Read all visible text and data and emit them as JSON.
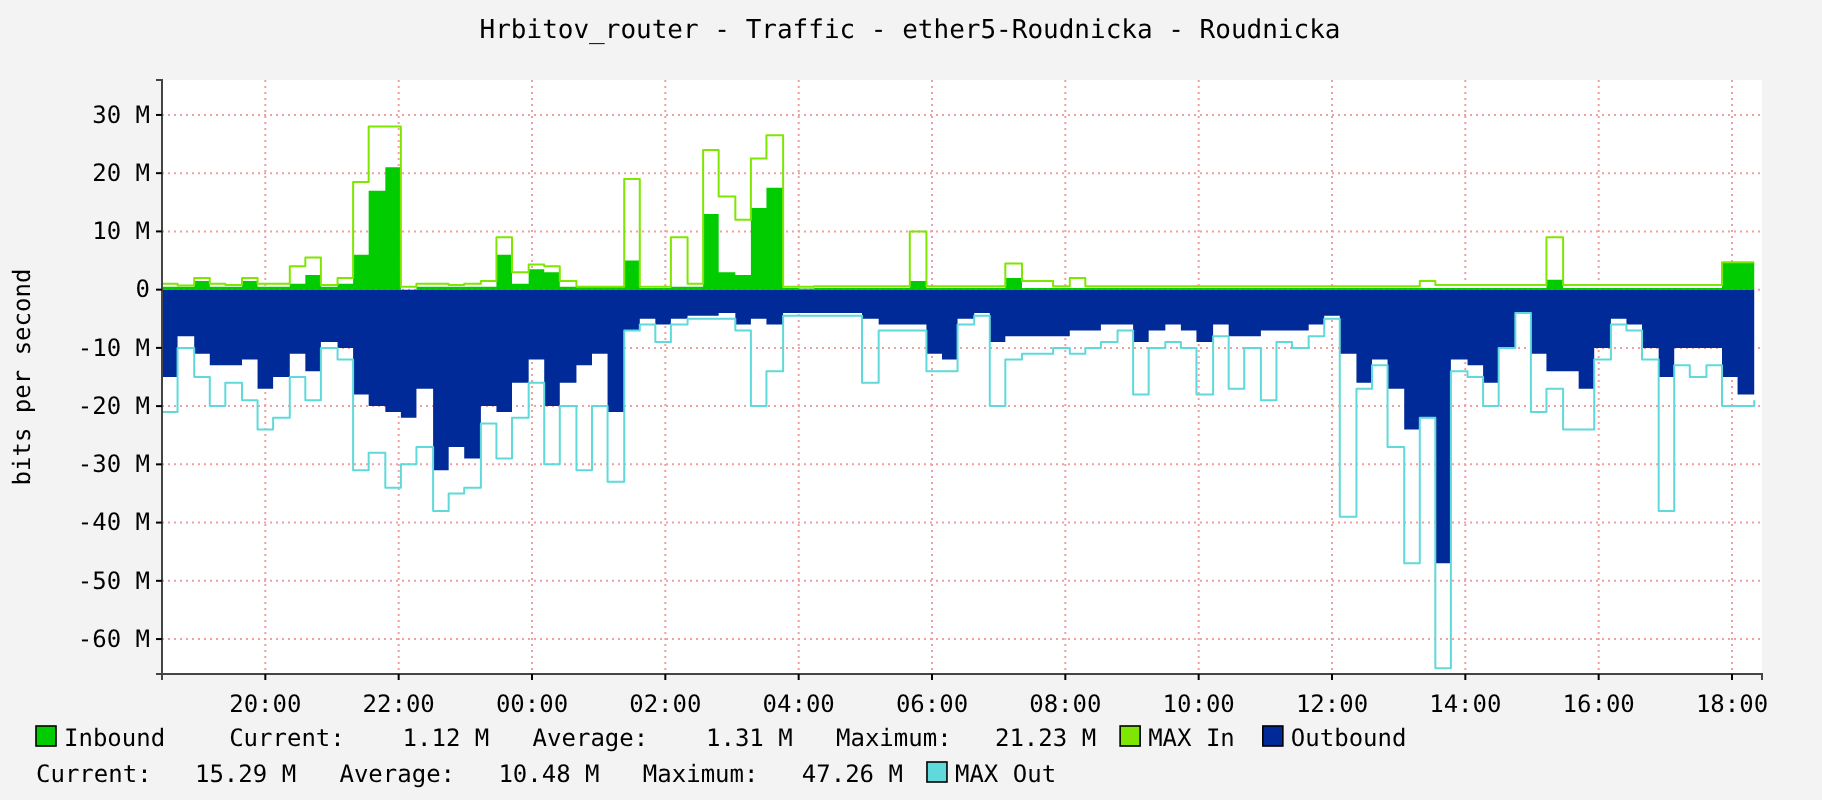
{
  "chart_data": {
    "type": "area",
    "title": "Hrbitov_router - Traffic - ether5-Roudnicka - Roudnicka",
    "ylabel": "bits per second",
    "x": [
      "2000-01-01T18:27",
      "2000-01-01T18:41",
      "2000-01-01T18:56",
      "2000-01-01T19:10",
      "2000-01-01T19:24",
      "2000-01-01T19:39",
      "2000-01-01T19:53",
      "2000-01-01T20:07",
      "2000-01-01T20:22",
      "2000-01-01T20:36",
      "2000-01-01T20:50",
      "2000-01-01T21:05",
      "2000-01-01T21:19",
      "2000-01-01T21:33",
      "2000-01-01T21:48",
      "2000-01-01T22:02",
      "2000-01-01T22:16",
      "2000-01-01T22:31",
      "2000-01-01T22:45",
      "2000-01-01T22:59",
      "2000-01-01T23:14",
      "2000-01-01T23:28",
      "2000-01-01T23:42",
      "2000-01-01T23:57",
      "2000-01-02T00:11",
      "2000-01-02T00:25",
      "2000-01-02T00:40",
      "2000-01-02T00:54",
      "2000-01-02T01:08",
      "2000-01-02T01:23",
      "2000-01-02T01:37",
      "2000-01-02T01:51",
      "2000-01-02T02:05",
      "2000-01-02T02:20",
      "2000-01-02T02:34",
      "2000-01-02T02:48",
      "2000-01-02T03:03",
      "2000-01-02T03:17",
      "2000-01-02T03:31",
      "2000-01-02T03:46",
      "2000-01-02T04:00",
      "2000-01-02T04:14",
      "2000-01-02T04:29",
      "2000-01-02T04:43",
      "2000-01-02T04:57",
      "2000-01-02T05:12",
      "2000-01-02T05:26",
      "2000-01-02T05:40",
      "2000-01-02T05:55",
      "2000-01-02T06:09",
      "2000-01-02T06:23",
      "2000-01-02T06:38",
      "2000-01-02T06:52",
      "2000-01-02T07:06",
      "2000-01-02T07:21",
      "2000-01-02T07:35",
      "2000-01-02T07:49",
      "2000-01-02T08:04",
      "2000-01-02T08:18",
      "2000-01-02T08:32",
      "2000-01-02T08:47",
      "2000-01-02T09:01",
      "2000-01-02T09:15",
      "2000-01-02T09:30",
      "2000-01-02T09:44",
      "2000-01-02T09:58",
      "2000-01-02T10:13",
      "2000-01-02T10:27",
      "2000-01-02T10:41",
      "2000-01-02T10:56",
      "2000-01-02T11:10",
      "2000-01-02T11:24",
      "2000-01-02T11:39",
      "2000-01-02T11:53",
      "2000-01-02T12:07",
      "2000-01-02T12:22",
      "2000-01-02T12:36",
      "2000-01-02T12:50",
      "2000-01-02T13:05",
      "2000-01-02T13:19",
      "2000-01-02T13:33",
      "2000-01-02T13:47",
      "2000-01-02T14:02",
      "2000-01-02T14:16",
      "2000-01-02T14:30",
      "2000-01-02T14:45",
      "2000-01-02T14:59",
      "2000-01-02T15:13",
      "2000-01-02T15:28",
      "2000-01-02T15:42",
      "2000-01-02T15:56",
      "2000-01-02T16:11",
      "2000-01-02T16:25",
      "2000-01-02T16:39",
      "2000-01-02T16:54",
      "2000-01-02T17:08",
      "2000-01-02T17:22",
      "2000-01-02T17:37",
      "2000-01-02T17:51",
      "2000-01-02T18:05",
      "2000-01-02T18:20"
    ],
    "series": [
      {
        "name": "Inbound",
        "color": "#00cc00",
        "values": [
          0.5,
          0.5,
          1.5,
          0.5,
          0.5,
          1.5,
          0.5,
          0.5,
          1,
          2.5,
          0.5,
          1,
          6,
          17,
          21,
          0,
          0.5,
          0.5,
          0.5,
          0.5,
          0.5,
          6,
          1,
          3.5,
          3,
          0.5,
          0.5,
          0.5,
          0.5,
          5,
          0.3,
          0.3,
          0.5,
          0.5,
          13,
          3,
          2.5,
          14,
          17.5,
          0.3,
          0.2,
          0.3,
          0.3,
          0.3,
          0.3,
          0.3,
          0.3,
          1.5,
          0.3,
          0.3,
          0.3,
          0.3,
          0.3,
          2,
          0.3,
          0.3,
          0.3,
          0.3,
          0.3,
          0.3,
          0.3,
          0.3,
          0.3,
          0.3,
          0.3,
          0.3,
          0.3,
          0.3,
          0.3,
          0.3,
          0.3,
          0.3,
          0.3,
          0.3,
          0.3,
          0.3,
          0.3,
          0.3,
          0.3,
          0.3,
          0.3,
          0.3,
          0.3,
          0.3,
          0.3,
          0.3,
          0.3,
          1.7,
          0.3,
          0.3,
          0.3,
          0.3,
          0.3,
          0.3,
          0.3,
          0.3,
          0.3,
          0.3,
          4.7,
          4.7,
          4.7
        ]
      },
      {
        "name": "MAX In",
        "type": "step",
        "color": "#7ee600",
        "values": [
          1,
          0.7,
          2,
          1,
          0.8,
          2,
          1,
          1,
          4,
          5.5,
          0.8,
          2,
          18.5,
          28,
          28,
          0.5,
          1,
          1,
          0.8,
          1,
          1.5,
          9,
          3,
          4.3,
          4,
          1.5,
          0.5,
          0.5,
          0.5,
          19,
          0.5,
          0.5,
          9,
          1,
          24,
          16,
          12,
          22.5,
          26.5,
          0.5,
          0.5,
          0.6,
          0.6,
          0.6,
          0.6,
          0.6,
          0.6,
          10,
          0.6,
          0.6,
          0.6,
          0.6,
          0.6,
          4.5,
          1.5,
          1.5,
          0.6,
          2,
          0.6,
          0.6,
          0.6,
          0.6,
          0.6,
          0.6,
          0.6,
          0.6,
          0.6,
          0.6,
          0.6,
          0.6,
          0.6,
          0.6,
          0.6,
          0.6,
          0.6,
          0.6,
          0.6,
          0.6,
          0.6,
          1.5,
          0.8,
          0.8,
          0.8,
          0.8,
          0.8,
          0.8,
          0.8,
          9,
          0.8,
          0.8,
          0.8,
          0.8,
          0.8,
          0.8,
          0.8,
          0.8,
          0.8,
          0.8,
          4.7,
          4.7,
          4.7
        ]
      },
      {
        "name": "Outbound",
        "color": "#002a97",
        "values": [
          -15,
          -8,
          -11,
          -13,
          -13,
          -12,
          -17,
          -15,
          -11,
          -14,
          -9,
          -10,
          -18,
          -20,
          -21,
          -22,
          -17,
          -31,
          -27,
          -29,
          -20,
          -21,
          -16,
          -12,
          -20,
          -16,
          -13,
          -11,
          -21,
          -7,
          -5,
          -6,
          -5,
          -4.5,
          -4.5,
          -4,
          -6,
          -5,
          -6,
          -4,
          -4,
          -4,
          -4,
          -4,
          -5,
          -6,
          -6,
          -6,
          -11,
          -12,
          -5,
          -4,
          -9,
          -8,
          -8,
          -8,
          -8,
          -7,
          -7,
          -6,
          -6,
          -9,
          -7,
          -6,
          -7,
          -9,
          -6,
          -8,
          -8,
          -7,
          -7,
          -7,
          -6,
          -4.5,
          -11,
          -16,
          -12,
          -17,
          -24,
          -22,
          -47,
          -12,
          -13,
          -16,
          -10,
          -4,
          -11,
          -14,
          -14,
          -17,
          -10,
          -5,
          -6,
          -10,
          -15,
          -10,
          -10,
          -10,
          -15,
          -18,
          -15
        ]
      },
      {
        "name": "MAX Out",
        "type": "step",
        "color": "#5fd9d9",
        "values": [
          -21,
          -10,
          -15,
          -20,
          -16,
          -19,
          -24,
          -22,
          -15,
          -19,
          -10,
          -12,
          -31,
          -28,
          -34,
          -30,
          -27,
          -38,
          -35,
          -34,
          -23,
          -29,
          -22,
          -16,
          -30,
          -20,
          -31,
          -20,
          -33,
          -7,
          -6,
          -9,
          -6,
          -5,
          -5,
          -5,
          -7,
          -20,
          -14,
          -4.5,
          -4.5,
          -4.5,
          -4.5,
          -4.5,
          -16,
          -7,
          -7,
          -7,
          -14,
          -14,
          -6,
          -4.5,
          -20,
          -12,
          -11,
          -11,
          -10,
          -11,
          -10,
          -9,
          -7,
          -18,
          -10,
          -9,
          -10,
          -18,
          -8,
          -17,
          -10,
          -19,
          -9,
          -10,
          -8,
          -5,
          -39,
          -17,
          -13,
          -27,
          -47,
          -22,
          -65,
          -14,
          -15,
          -20,
          -10,
          -4,
          -21,
          -17,
          -24,
          -24,
          -12,
          -6,
          -7,
          -12,
          -38,
          -13,
          -15,
          -13,
          -20,
          -20,
          -19
        ]
      }
    ],
    "xlim": [
      "2000-01-01T18:27",
      "2000-01-02T18:27"
    ],
    "xticks": [
      {
        "value": "2000-01-01T20:00",
        "label": "20:00"
      },
      {
        "value": "2000-01-01T22:00",
        "label": "22:00"
      },
      {
        "value": "2000-01-02T00:00",
        "label": "00:00"
      },
      {
        "value": "2000-01-02T02:00",
        "label": "02:00"
      },
      {
        "value": "2000-01-02T04:00",
        "label": "04:00"
      },
      {
        "value": "2000-01-02T06:00",
        "label": "06:00"
      },
      {
        "value": "2000-01-02T08:00",
        "label": "08:00"
      },
      {
        "value": "2000-01-02T10:00",
        "label": "10:00"
      },
      {
        "value": "2000-01-02T12:00",
        "label": "12:00"
      },
      {
        "value": "2000-01-02T14:00",
        "label": "14:00"
      },
      {
        "value": "2000-01-02T16:00",
        "label": "16:00"
      },
      {
        "value": "2000-01-02T18:00",
        "label": "18:00"
      }
    ],
    "ylim": [
      -66,
      36
    ],
    "yticks": [
      {
        "value": -60,
        "label": "-60 M"
      },
      {
        "value": -50,
        "label": "-50 M"
      },
      {
        "value": -40,
        "label": "-40 M"
      },
      {
        "value": -30,
        "label": "-30 M"
      },
      {
        "value": -20,
        "label": "-20 M"
      },
      {
        "value": -10,
        "label": "-10 M"
      },
      0,
      {
        "value": 10,
        "label": "10 M"
      },
      {
        "value": 20,
        "label": "20 M"
      },
      {
        "value": 30,
        "label": "30 M"
      }
    ],
    "grid": true,
    "legend": "bottom",
    "annotations": [
      "Current:    1.12 M   Average:    1.31 M   Maximum:   21.23 M",
      "Current:   15.29 M   Average:   10.48 M   Maximum:   47.26 M"
    ]
  }
}
